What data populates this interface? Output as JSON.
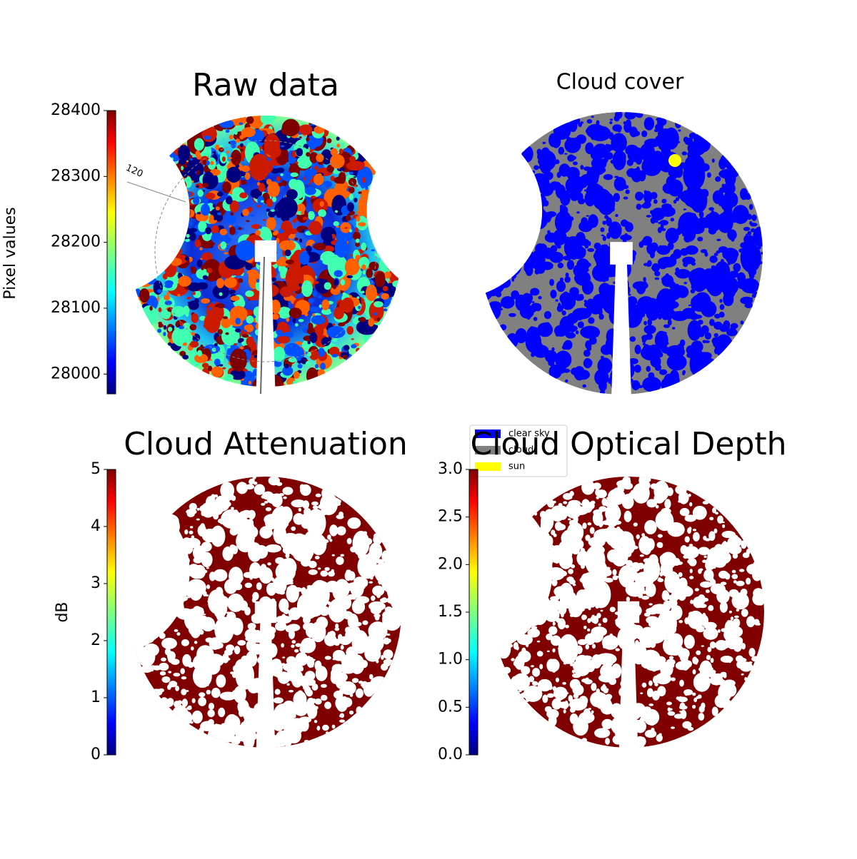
{
  "chart_data": [
    {
      "type": "heatmap",
      "title": "Raw data",
      "colorbar_label": "Pixel values",
      "clim": [
        27970,
        28400
      ],
      "cticks": [
        28000,
        28100,
        28200,
        28300,
        28400
      ],
      "annotations": [
        "120"
      ]
    },
    {
      "type": "classification",
      "title": "Cloud cover",
      "series": [
        {
          "name": "clear sky",
          "color": "#0000ff"
        },
        {
          "name": "cloud",
          "color": "#808080"
        },
        {
          "name": "sun",
          "color": "#ffff00"
        }
      ]
    },
    {
      "type": "heatmap",
      "title": "Cloud Attenuation",
      "colorbar_label": "dB",
      "clim": [
        0,
        5
      ],
      "cticks": [
        0,
        1,
        2,
        3,
        4,
        5
      ]
    },
    {
      "type": "heatmap",
      "title": "Cloud Optical Depth",
      "clim": [
        0,
        3
      ],
      "cticks": [
        {
          "value": 0,
          "label": "0.0"
        },
        {
          "value": 0.5,
          "label": "0.5"
        },
        {
          "value": 1,
          "label": "1.0"
        },
        {
          "value": 1.5,
          "label": "1.5"
        },
        {
          "value": 2,
          "label": "2.0"
        },
        {
          "value": 2.5,
          "label": "2.5"
        },
        {
          "value": 3,
          "label": "3.0"
        }
      ]
    }
  ]
}
